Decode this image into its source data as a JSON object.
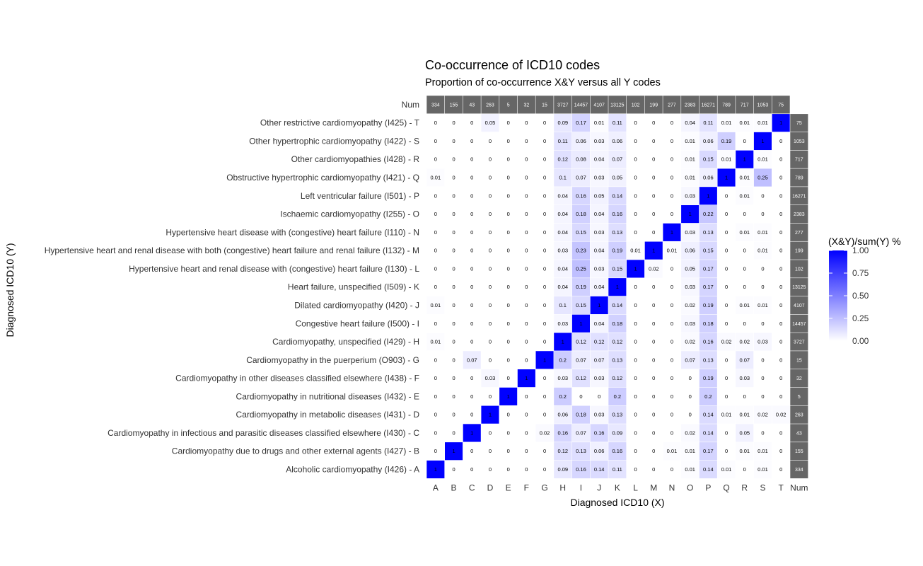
{
  "chart_data": {
    "type": "heatmap",
    "title": "Co-occurrence of ICD10 codes",
    "subtitle": "Proportion of co-occurrence X&Y versus all Y codes",
    "xlabel": "Diagnosed ICD10 (X)",
    "ylabel": "Diagnosed ICD10 (Y)",
    "num_label": "Num",
    "legend": {
      "title": "(X&Y)/sum(Y) %",
      "ticks": [
        "1.00",
        "0.75",
        "0.50",
        "0.25",
        "0.00"
      ],
      "low_color": "#ffffff",
      "high_color": "#0000ff",
      "position": "right"
    },
    "num_color": "#666666",
    "x_codes": [
      "A",
      "B",
      "C",
      "D",
      "E",
      "F",
      "G",
      "H",
      "I",
      "J",
      "K",
      "L",
      "M",
      "N",
      "O",
      "P",
      "Q",
      "R",
      "S",
      "T"
    ],
    "col_nums": [
      "334",
      "155",
      "43",
      "263",
      "5",
      "32",
      "15",
      "3727",
      "14457",
      "4107",
      "13125",
      "102",
      "199",
      "277",
      "2383",
      "16271",
      "789",
      "717",
      "1053",
      "75"
    ],
    "rows": [
      {
        "label": "Other restrictive cardiomyopathy (I425) - T",
        "num": "75",
        "values": [
          0,
          0,
          0,
          0.05,
          0,
          0,
          0,
          0.09,
          0.17,
          0.01,
          0.11,
          0,
          0,
          0,
          0.04,
          0.11,
          0.01,
          0.01,
          0.01,
          1
        ],
        "labels": [
          "0",
          "0",
          "0",
          "0.05",
          "0",
          "0",
          "0",
          "0.09",
          "0.17",
          "0.01",
          "0.11",
          "0",
          "0",
          "0",
          "0.04",
          "0.11",
          "0.01",
          "0.01",
          "0.01",
          "1"
        ]
      },
      {
        "label": "Other hypertrophic cardiomyopathy (I422) - S",
        "num": "1053",
        "values": [
          0,
          0,
          0,
          0,
          0,
          0,
          0,
          0.11,
          0.06,
          0.03,
          0.06,
          0,
          0,
          0,
          0.01,
          0.06,
          0.19,
          0,
          1,
          0
        ],
        "labels": [
          "0",
          "0",
          "0",
          "0",
          "0",
          "0",
          "0",
          "0.11",
          "0.06",
          "0.03",
          "0.06",
          "0",
          "0",
          "0",
          "0.01",
          "0.06",
          "0.19",
          "0",
          "1",
          "0"
        ]
      },
      {
        "label": "Other cardiomyopathies (I428) - R",
        "num": "717",
        "values": [
          0,
          0,
          0,
          0,
          0,
          0,
          0,
          0.12,
          0.08,
          0.04,
          0.07,
          0,
          0,
          0,
          0.01,
          0.15,
          0.01,
          1,
          0.01,
          0
        ],
        "labels": [
          "0",
          "0",
          "0",
          "0",
          "0",
          "0",
          "0",
          "0.12",
          "0.08",
          "0.04",
          "0.07",
          "0",
          "0",
          "0",
          "0.01",
          "0.15",
          "0.01",
          "1",
          "0.01",
          "0"
        ]
      },
      {
        "label": "Obstructive hypertrophic cardiomyopathy (I421) - Q",
        "num": "789",
        "values": [
          0.01,
          0,
          0,
          0,
          0,
          0,
          0,
          0.1,
          0.07,
          0.03,
          0.05,
          0,
          0,
          0,
          0.01,
          0.06,
          1,
          0.01,
          0.25,
          0
        ],
        "labels": [
          "0.01",
          "0",
          "0",
          "0",
          "0",
          "0",
          "0",
          "0.1",
          "0.07",
          "0.03",
          "0.05",
          "0",
          "0",
          "0",
          "0.01",
          "0.06",
          "1",
          "0.01",
          "0.25",
          "0"
        ]
      },
      {
        "label": "Left ventricular failure (I501) - P",
        "num": "16271",
        "values": [
          0,
          0,
          0,
          0,
          0,
          0,
          0,
          0.04,
          0.16,
          0.05,
          0.14,
          0,
          0,
          0,
          0.03,
          1,
          0,
          0.01,
          0,
          0
        ],
        "labels": [
          "0",
          "0",
          "0",
          "0",
          "0",
          "0",
          "0",
          "0.04",
          "0.16",
          "0.05",
          "0.14",
          "0",
          "0",
          "0",
          "0.03",
          "1",
          "0",
          "0.01",
          "0",
          "0"
        ]
      },
      {
        "label": "Ischaemic cardiomyopathy (I255) - O",
        "num": "2383",
        "values": [
          0,
          0,
          0,
          0,
          0,
          0,
          0,
          0.04,
          0.18,
          0.04,
          0.16,
          0,
          0,
          0,
          1,
          0.22,
          0,
          0,
          0,
          0
        ],
        "labels": [
          "0",
          "0",
          "0",
          "0",
          "0",
          "0",
          "0",
          "0.04",
          "0.18",
          "0.04",
          "0.16",
          "0",
          "0",
          "0",
          "1",
          "0.22",
          "0",
          "0",
          "0",
          "0"
        ]
      },
      {
        "label": "Hypertensive heart disease with (congestive) heart failure (I110) - N",
        "num": "277",
        "values": [
          0,
          0,
          0,
          0,
          0,
          0,
          0,
          0.04,
          0.15,
          0.03,
          0.13,
          0,
          0,
          1,
          0.03,
          0.13,
          0,
          0.01,
          0.01,
          0
        ],
        "labels": [
          "0",
          "0",
          "0",
          "0",
          "0",
          "0",
          "0",
          "0.04",
          "0.15",
          "0.03",
          "0.13",
          "0",
          "0",
          "1",
          "0.03",
          "0.13",
          "0",
          "0.01",
          "0.01",
          "0"
        ]
      },
      {
        "label": "Hypertensive heart and renal disease with both (congestive) heart failure and renal failure (I132) - M",
        "num": "199",
        "values": [
          0,
          0,
          0,
          0,
          0,
          0,
          0,
          0.03,
          0.23,
          0.04,
          0.19,
          0.01,
          1,
          0.01,
          0.06,
          0.15,
          0,
          0,
          0.01,
          0
        ],
        "labels": [
          "0",
          "0",
          "0",
          "0",
          "0",
          "0",
          "0",
          "0.03",
          "0.23",
          "0.04",
          "0.19",
          "0.01",
          "1",
          "0.01",
          "0.06",
          "0.15",
          "0",
          "0",
          "0.01",
          "0"
        ]
      },
      {
        "label": "Hypertensive heart and renal disease with (congestive) heart failure (I130) - L",
        "num": "102",
        "values": [
          0,
          0,
          0,
          0,
          0,
          0,
          0,
          0.04,
          0.25,
          0.03,
          0.15,
          1,
          0.02,
          0,
          0.05,
          0.17,
          0,
          0,
          0,
          0
        ],
        "labels": [
          "0",
          "0",
          "0",
          "0",
          "0",
          "0",
          "0",
          "0.04",
          "0.25",
          "0.03",
          "0.15",
          "1",
          "0.02",
          "0",
          "0.05",
          "0.17",
          "0",
          "0",
          "0",
          "0"
        ]
      },
      {
        "label": "Heart failure, unspecified (I509) - K",
        "num": "13125",
        "values": [
          0,
          0,
          0,
          0,
          0,
          0,
          0,
          0.04,
          0.19,
          0.04,
          1,
          0,
          0,
          0,
          0.03,
          0.17,
          0,
          0,
          0,
          0
        ],
        "labels": [
          "0",
          "0",
          "0",
          "0",
          "0",
          "0",
          "0",
          "0.04",
          "0.19",
          "0.04",
          "1",
          "0",
          "0",
          "0",
          "0.03",
          "0.17",
          "0",
          "0",
          "0",
          "0"
        ]
      },
      {
        "label": "Dilated cardiomyopathy (I420) - J",
        "num": "4107",
        "values": [
          0.01,
          0,
          0,
          0,
          0,
          0,
          0,
          0.1,
          0.15,
          1,
          0.14,
          0,
          0,
          0,
          0.02,
          0.19,
          0,
          0.01,
          0.01,
          0
        ],
        "labels": [
          "0.01",
          "0",
          "0",
          "0",
          "0",
          "0",
          "0",
          "0.1",
          "0.15",
          "1",
          "0.14",
          "0",
          "0",
          "0",
          "0.02",
          "0.19",
          "0",
          "0.01",
          "0.01",
          "0"
        ]
      },
      {
        "label": "Congestive heart failure (I500) - I",
        "num": "14457",
        "values": [
          0,
          0,
          0,
          0,
          0,
          0,
          0,
          0.03,
          1,
          0.04,
          0.18,
          0,
          0,
          0,
          0.03,
          0.18,
          0,
          0,
          0,
          0
        ],
        "labels": [
          "0",
          "0",
          "0",
          "0",
          "0",
          "0",
          "0",
          "0.03",
          "1",
          "0.04",
          "0.18",
          "0",
          "0",
          "0",
          "0.03",
          "0.18",
          "0",
          "0",
          "0",
          "0"
        ]
      },
      {
        "label": "Cardiomyopathy, unspecified (I429) - H",
        "num": "3727",
        "values": [
          0.01,
          0,
          0,
          0,
          0,
          0,
          0,
          1,
          0.12,
          0.12,
          0.12,
          0,
          0,
          0,
          0.02,
          0.16,
          0.02,
          0.02,
          0.03,
          0
        ],
        "labels": [
          "0.01",
          "0",
          "0",
          "0",
          "0",
          "0",
          "0",
          "1",
          "0.12",
          "0.12",
          "0.12",
          "0",
          "0",
          "0",
          "0.02",
          "0.16",
          "0.02",
          "0.02",
          "0.03",
          "0"
        ]
      },
      {
        "label": "Cardiomyopathy in the puerperium (O903) - G",
        "num": "15",
        "values": [
          0,
          0,
          0.07,
          0,
          0,
          0,
          1,
          0.2,
          0.07,
          0.07,
          0.13,
          0,
          0,
          0,
          0.07,
          0.13,
          0,
          0.07,
          0,
          0
        ],
        "labels": [
          "0",
          "0",
          "0.07",
          "0",
          "0",
          "0",
          "1",
          "0.2",
          "0.07",
          "0.07",
          "0.13",
          "0",
          "0",
          "0",
          "0.07",
          "0.13",
          "0",
          "0.07",
          "0",
          "0"
        ]
      },
      {
        "label": "Cardiomyopathy in other diseases classified elsewhere (I438) - F",
        "num": "32",
        "values": [
          0,
          0,
          0,
          0.03,
          0,
          1,
          0,
          0.03,
          0.12,
          0.03,
          0.12,
          0,
          0,
          0,
          0,
          0.19,
          0,
          0.03,
          0,
          0
        ],
        "labels": [
          "0",
          "0",
          "0",
          "0.03",
          "0",
          "1",
          "0",
          "0.03",
          "0.12",
          "0.03",
          "0.12",
          "0",
          "0",
          "0",
          "0",
          "0.19",
          "0",
          "0.03",
          "0",
          "0"
        ]
      },
      {
        "label": "Cardiomyopathy in nutritional diseases (I432) - E",
        "num": "5",
        "values": [
          0,
          0,
          0,
          0,
          1,
          0,
          0,
          0.2,
          0,
          0,
          0.2,
          0,
          0,
          0,
          0,
          0.2,
          0,
          0,
          0,
          0
        ],
        "labels": [
          "0",
          "0",
          "0",
          "0",
          "1",
          "0",
          "0",
          "0.2",
          "0",
          "0",
          "0.2",
          "0",
          "0",
          "0",
          "0",
          "0.2",
          "0",
          "0",
          "0",
          "0"
        ]
      },
      {
        "label": "Cardiomyopathy in metabolic diseases (I431) - D",
        "num": "263",
        "values": [
          0,
          0,
          0,
          1,
          0,
          0,
          0,
          0.06,
          0.18,
          0.03,
          0.13,
          0,
          0,
          0,
          0,
          0.14,
          0.01,
          0.01,
          0.02,
          0.02
        ],
        "labels": [
          "0",
          "0",
          "0",
          "1",
          "0",
          "0",
          "0",
          "0.06",
          "0.18",
          "0.03",
          "0.13",
          "0",
          "0",
          "0",
          "0",
          "0.14",
          "0.01",
          "0.01",
          "0.02",
          "0.02"
        ]
      },
      {
        "label": "Cardiomyopathy in infectious and parasitic diseases classified elsewhere (I430) - C",
        "num": "43",
        "values": [
          0,
          0,
          1,
          0,
          0,
          0,
          0.02,
          0.16,
          0.07,
          0.16,
          0.09,
          0,
          0,
          0,
          0.02,
          0.14,
          0,
          0.05,
          0,
          0
        ],
        "labels": [
          "0",
          "0",
          "1",
          "0",
          "0",
          "0",
          "0.02",
          "0.16",
          "0.07",
          "0.16",
          "0.09",
          "0",
          "0",
          "0",
          "0.02",
          "0.14",
          "0",
          "0.05",
          "0",
          "0"
        ]
      },
      {
        "label": "Cardiomyopathy due to drugs and other external agents (I427) - B",
        "num": "155",
        "values": [
          0,
          1,
          0,
          0,
          0,
          0,
          0,
          0.12,
          0.13,
          0.06,
          0.16,
          0,
          0,
          0.01,
          0.01,
          0.17,
          0,
          0.01,
          0.01,
          0
        ],
        "labels": [
          "0",
          "1",
          "0",
          "0",
          "0",
          "0",
          "0",
          "0.12",
          "0.13",
          "0.06",
          "0.16",
          "0",
          "0",
          "0.01",
          "0.01",
          "0.17",
          "0",
          "0.01",
          "0.01",
          "0"
        ]
      },
      {
        "label": "Alcoholic cardiomyopathy (I426) - A",
        "num": "334",
        "values": [
          1,
          0,
          0,
          0,
          0,
          0,
          0,
          0.09,
          0.16,
          0.14,
          0.11,
          0,
          0,
          0,
          0.01,
          0.14,
          0.01,
          0,
          0.01,
          0
        ],
        "labels": [
          "1",
          "0",
          "0",
          "0",
          "0",
          "0",
          "0",
          "0.09",
          "0.16",
          "0.14",
          "0.11",
          "0",
          "0",
          "0",
          "0.01",
          "0.14",
          "0.01",
          "0",
          "0.01",
          "0"
        ]
      }
    ]
  }
}
